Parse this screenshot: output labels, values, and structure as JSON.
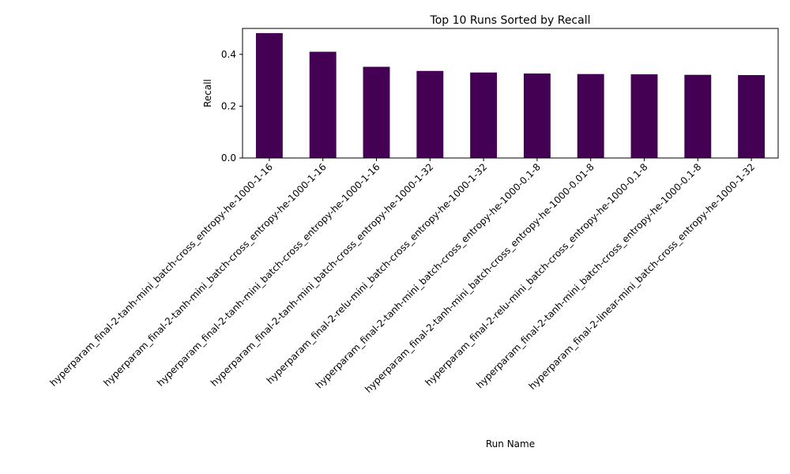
{
  "chart_data": {
    "type": "bar",
    "title": "Top 10 Runs Sorted by Recall",
    "xlabel": "Run Name",
    "ylabel": "Recall",
    "ylim": [
      0,
      0.5
    ],
    "yticks": [
      0.0,
      0.2,
      0.4
    ],
    "ytick_labels": [
      "0.0",
      "0.2",
      "0.4"
    ],
    "grid": false,
    "legend": "none",
    "bar_color": "#440154",
    "categories": [
      "hyperparam_final-2-tanh-mini_batch-cross_entropy-he-1000-1-16",
      "hyperparam_final-2-tanh-mini_batch-cross_entropy-he-1000-1-16",
      "hyperparam_final-2-tanh-mini_batch-cross_entropy-he-1000-1-16",
      "hyperparam_final-2-tanh-mini_batch-cross_entropy-he-1000-1-32",
      "hyperparam_final-2-relu-mini_batch-cross_entropy-he-1000-1-32",
      "hyperparam_final-2-tanh-mini_batch-cross_entropy-he-1000-0.1-8",
      "hyperparam_final-2-tanh-mini_batch-cross_entropy-he-1000-0.01-8",
      "hyperparam_final-2-relu-mini_batch-cross_entropy-he-1000-0.1-8",
      "hyperparam_final-2-tanh-mini_batch-cross_entropy-he-1000-0.1-8",
      "hyperparam_final-2-linear-mini_batch-cross_entropy-he-1000-1-32"
    ],
    "values": [
      0.482,
      0.41,
      0.352,
      0.336,
      0.33,
      0.326,
      0.324,
      0.323,
      0.321,
      0.32
    ]
  }
}
